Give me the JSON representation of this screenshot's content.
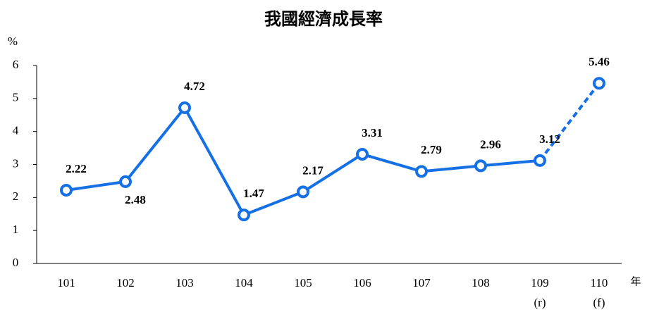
{
  "chart_data": {
    "type": "line",
    "title": "我國經濟成長率",
    "y_unit": "%",
    "x_unit": "年",
    "categories": [
      "101",
      "102",
      "103",
      "104",
      "105",
      "106",
      "107",
      "108",
      "109",
      "110"
    ],
    "category_notes": [
      null,
      null,
      null,
      null,
      null,
      null,
      null,
      null,
      "(r)",
      "(f)"
    ],
    "series": [
      {
        "color": "#1570e6",
        "values": [
          2.22,
          2.48,
          4.72,
          1.47,
          2.17,
          3.31,
          2.79,
          2.96,
          3.12,
          5.46
        ]
      }
    ],
    "dashed_after_index": 8,
    "ylim": [
      0,
      6
    ],
    "yticks": [
      0,
      1,
      2,
      3,
      4,
      5,
      6
    ],
    "grid": false
  }
}
